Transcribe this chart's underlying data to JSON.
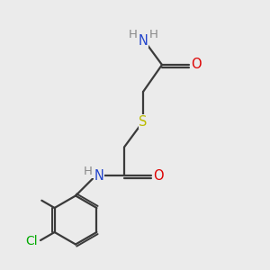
{
  "background_color": "#ebebeb",
  "bond_color": "#3a3a3a",
  "carbon_color": "#3a3a3a",
  "nitrogen_color": "#2244cc",
  "oxygen_color": "#dd0000",
  "sulfur_color": "#bbbb00",
  "chlorine_color": "#00aa00",
  "h_color": "#888888",
  "figsize": [
    3.0,
    3.0
  ],
  "dpi": 100,
  "xlim": [
    0,
    10
  ],
  "ylim": [
    0,
    10
  ]
}
